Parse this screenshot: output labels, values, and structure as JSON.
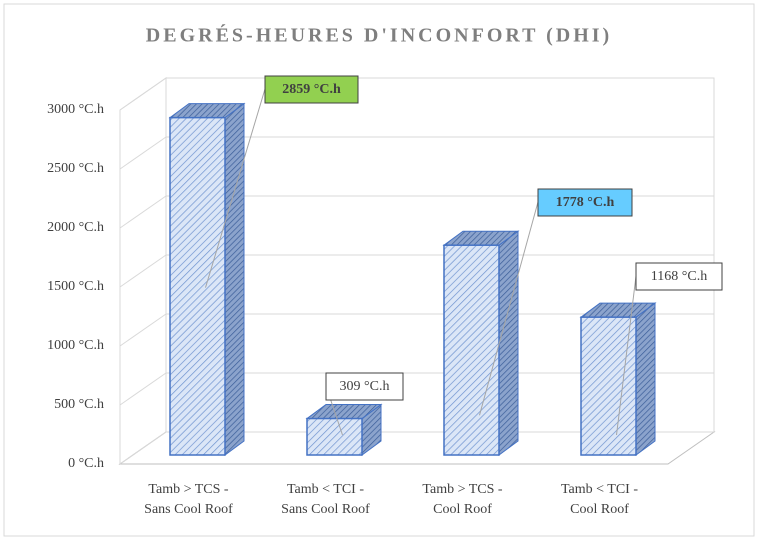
{
  "chart_data": {
    "type": "bar3d",
    "title": "DEGRÉS-HEURES D'INCONFORT (DHI)",
    "categories": [
      [
        "Tamb > TCS -",
        "Sans Cool Roof"
      ],
      [
        "Tamb < TCI -",
        "Sans Cool Roof"
      ],
      [
        "Tamb > TCS -",
        "Cool Roof"
      ],
      [
        "Tamb < TCI -",
        "Cool Roof"
      ]
    ],
    "values": [
      2859,
      309,
      1778,
      1168
    ],
    "value_labels": [
      "2859 °C.h",
      "309 °C.h",
      "1778 °C.h",
      "1168 °C.h"
    ],
    "value_label_colors": [
      "#92d050",
      "#ffffff",
      "#66ccff",
      "#ffffff"
    ],
    "value_label_bold": [
      true,
      false,
      true,
      false
    ],
    "color": "#4472c4",
    "ylim": [
      0,
      3000
    ],
    "yticks": [
      {
        "value": 0,
        "label": "0 °C.h"
      },
      {
        "value": 500,
        "label": "500 °C.h"
      },
      {
        "value": 1000,
        "label": "1000 °C.h"
      },
      {
        "value": 1500,
        "label": "1500 °C.h"
      },
      {
        "value": 2000,
        "label": "2000 °C.h"
      },
      {
        "value": 2500,
        "label": "2500 °C.h"
      },
      {
        "value": 3000,
        "label": "3000 °C.h"
      }
    ],
    "grid": true
  }
}
